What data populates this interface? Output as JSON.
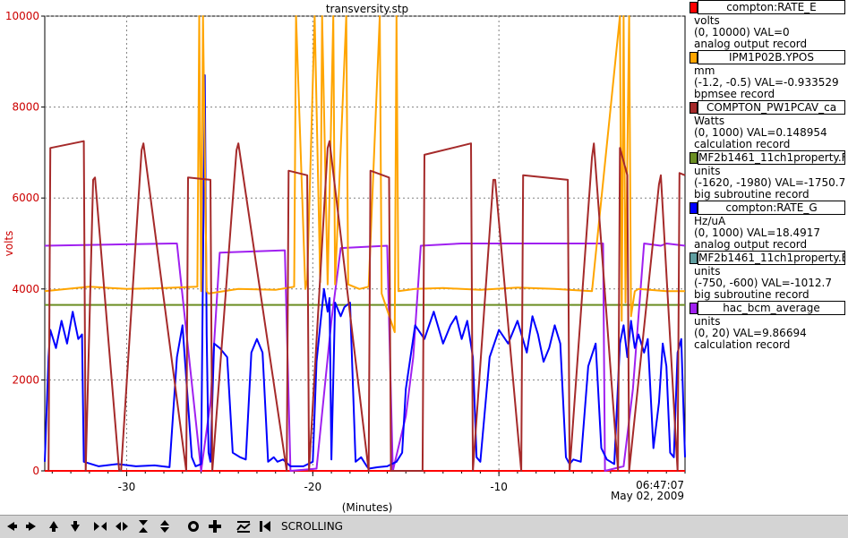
{
  "chart_data": {
    "type": "line",
    "title": "transversity.stp",
    "ylabel": "volts",
    "xlabel": "(Minutes)",
    "ylim": [
      0,
      10000
    ],
    "yticks": [
      0,
      2000,
      4000,
      6000,
      8000,
      10000
    ],
    "ytick_labels": [
      "0",
      "2000",
      "4000",
      "6000",
      "8000",
      "10000"
    ],
    "xlim": [
      -34.4,
      0
    ],
    "xticks": [
      -30,
      -20,
      -10
    ],
    "xtick_labels": [
      "-30",
      "-20",
      "-10"
    ],
    "time_label": "06:47:07",
    "date_label": "May 02, 2009",
    "series": [
      {
        "name": "compton:RATE_E",
        "color": "#ff0000",
        "x": [
          -34.4,
          0
        ],
        "y": [
          0,
          0
        ]
      },
      {
        "name": "IPM1P02B.YPOS",
        "color": "#ffa500",
        "x": [
          -34.4,
          -32,
          -30,
          -28,
          -26.2,
          -26.1,
          -26.0,
          -25.9,
          -25.7,
          -25.6,
          -24,
          -22,
          -21.0,
          -20.9,
          -20.4,
          -20.3,
          -19.9,
          -19.6,
          -19.5,
          -19.2,
          -18.9,
          -18.8,
          -18.2,
          -18.1,
          -17.5,
          -17,
          -16.4,
          -16.3,
          -15.6,
          -15.5,
          -15.4,
          -14.5,
          -13,
          -11,
          -9,
          -7,
          -5,
          -3.5,
          -3.4,
          -3.3,
          -3.2,
          -3.0,
          -2.9,
          -2.7,
          -2.5,
          -1,
          0
        ],
        "y": [
          3950,
          4050,
          4000,
          4020,
          4050,
          10000,
          3950,
          10000,
          3950,
          3900,
          4000,
          3980,
          4050,
          10000,
          4000,
          4200,
          10000,
          4150,
          10000,
          4100,
          10000,
          4100,
          10000,
          4100,
          4000,
          4050,
          10000,
          3900,
          3050,
          10000,
          3950,
          4000,
          4020,
          3980,
          4030,
          4000,
          3950,
          10000,
          3300,
          10000,
          3700,
          10000,
          3400,
          3950,
          4000,
          3950,
          3950
        ]
      },
      {
        "name": "COMPTON_PW1PCAV_ca",
        "color": "#a52a2a",
        "x": [
          -34.2,
          -34.1,
          -32.3,
          -32.2,
          -31.8,
          -31.7,
          -30.4,
          -30.3,
          -29.2,
          -29.1,
          -26.8,
          -26.7,
          -25.5,
          -25.4,
          -24.1,
          -24.0,
          -21.4,
          -21.3,
          -20.3,
          -20.2,
          -19.2,
          -19.1,
          -17.0,
          -16.9,
          -15.9,
          -15.8,
          -14.1,
          -14.0,
          -11.5,
          -11.4,
          -10.3,
          -10.2,
          -8.8,
          -8.7,
          -6.3,
          -6.2,
          -5.0,
          -4.9,
          -3.6,
          -3.5,
          -3.1,
          -3.0,
          -1.4,
          -1.3,
          -0.4,
          -0.3,
          0
        ],
        "y": [
          0,
          7100,
          7250,
          0,
          6400,
          6450,
          0,
          0,
          7050,
          7200,
          0,
          6450,
          6400,
          0,
          7050,
          7200,
          0,
          6600,
          6500,
          0,
          7100,
          7250,
          0,
          6600,
          6450,
          0,
          0,
          6950,
          7200,
          0,
          6400,
          6400,
          0,
          6500,
          6400,
          0,
          6900,
          7200,
          0,
          7100,
          6500,
          0,
          6300,
          6500,
          0,
          6550,
          6500
        ]
      },
      {
        "name": "MF2b1461_11ch1property.F",
        "color": "#6b8e23",
        "x": [
          -34.4,
          0
        ],
        "y": [
          3650,
          3650
        ]
      },
      {
        "name": "compton:RATE_G",
        "color": "#0000ff",
        "x": [
          -34.4,
          -34.2,
          -34.1,
          -33.8,
          -33.5,
          -33.2,
          -32.9,
          -32.6,
          -32.4,
          -32.3,
          -31.5,
          -30.5,
          -29.5,
          -28.5,
          -27.7,
          -27.3,
          -27.0,
          -26.5,
          -26.3,
          -26.0,
          -25.8,
          -25.7,
          -25.6,
          -25.5,
          -25.3,
          -25.0,
          -24.6,
          -24.3,
          -23.9,
          -23.6,
          -23.3,
          -23.0,
          -22.7,
          -22.4,
          -22.1,
          -21.9,
          -21.6,
          -21.2,
          -20.5,
          -20.0,
          -19.8,
          -19.6,
          -19.4,
          -19.2,
          -19.1,
          -19.0,
          -18.8,
          -18.5,
          -18.3,
          -18.0,
          -17.7,
          -17.4,
          -17.1,
          -17.0,
          -16.5,
          -16.0,
          -15.5,
          -15.2,
          -15.0,
          -14.5,
          -14.0,
          -13.5,
          -13.0,
          -12.6,
          -12.3,
          -12.0,
          -11.7,
          -11.4,
          -11.2,
          -11.0,
          -10.5,
          -10.0,
          -9.5,
          -9.0,
          -8.5,
          -8.2,
          -7.9,
          -7.6,
          -7.3,
          -7.0,
          -6.7,
          -6.4,
          -6.2,
          -6.0,
          -5.6,
          -5.2,
          -4.8,
          -4.5,
          -4.2,
          -3.8,
          -3.5,
          -3.3,
          -3.1,
          -2.9,
          -2.7,
          -2.5,
          -2.2,
          -2.0,
          -1.7,
          -1.4,
          -1.2,
          -1.0,
          -0.8,
          -0.6,
          -0.4,
          -0.2,
          0
        ],
        "y": [
          200,
          2500,
          3100,
          2700,
          3300,
          2800,
          3500,
          2900,
          3000,
          200,
          100,
          150,
          100,
          120,
          80,
          2500,
          3200,
          300,
          100,
          150,
          8700,
          3000,
          400,
          200,
          2800,
          2700,
          2500,
          400,
          300,
          250,
          2600,
          2900,
          2600,
          200,
          300,
          200,
          250,
          100,
          100,
          200,
          2400,
          3200,
          4000,
          3500,
          3800,
          250,
          3700,
          3400,
          3600,
          3700,
          200,
          300,
          100,
          50,
          80,
          100,
          200,
          400,
          1800,
          3200,
          2900,
          3500,
          2800,
          3200,
          3400,
          2900,
          3300,
          2500,
          300,
          200,
          2500,
          3100,
          2800,
          3300,
          2600,
          3400,
          3000,
          2400,
          2700,
          3200,
          2800,
          300,
          150,
          250,
          200,
          2300,
          2800,
          500,
          250,
          150,
          2800,
          3200,
          2500,
          3300,
          2700,
          3000,
          2600,
          2900,
          500,
          1500,
          2800,
          2300,
          400,
          300,
          2600,
          2900,
          300
        ]
      },
      {
        "name": "MF2b1461_11ch1property.E",
        "color": "#5f9ea0",
        "x": [
          -34.4,
          0
        ],
        "y": [
          0,
          0
        ]
      },
      {
        "name": "hac_bcm_average",
        "color": "#a020f0",
        "x": [
          -34.4,
          -27.5,
          -27.3,
          -26.0,
          -25.5,
          -25.0,
          -21.5,
          -21.2,
          -19.8,
          -19.0,
          -18.5,
          -16.0,
          -15.7,
          -15.0,
          -14.6,
          -14.2,
          -12,
          -10,
          -8,
          -6,
          -4.4,
          -4.3,
          -3.3,
          -2.8,
          -2.2,
          -1.3,
          -1.0,
          0
        ],
        "y": [
          4950,
          5000,
          5000,
          0,
          1500,
          4800,
          4850,
          0,
          50,
          3300,
          4900,
          4950,
          0,
          1200,
          2500,
          4950,
          5000,
          5000,
          5000,
          5000,
          5000,
          0,
          100,
          1800,
          5000,
          4950,
          5000,
          4950
        ]
      }
    ]
  },
  "legend": [
    {
      "name": "compton:RATE_E",
      "color": "#ff0000",
      "unit": "volts",
      "range": "(0, 10000)  VAL=0",
      "record": "analog output record"
    },
    {
      "name": "IPM1P02B.YPOS",
      "color": "#ffa500",
      "unit": "mm",
      "range": "(-1.2, -0.5) VAL=-0.933529",
      "record": "bpmsee record"
    },
    {
      "name": "COMPTON_PW1PCAV_ca",
      "color": "#a52a2a",
      "unit": "Watts",
      "range": "(0, 1000) VAL=0.148954",
      "record": "calculation record"
    },
    {
      "name": "MF2b1461_11ch1property.F",
      "color": "#6b8e23",
      "unit": "units",
      "range": "(-1620, -1980) VAL=-1750.7",
      "record": "big subroutine record"
    },
    {
      "name": "compton:RATE_G",
      "color": "#0000ff",
      "unit": "Hz/uA",
      "range": "(0, 1000) VAL=18.4917",
      "record": "analog output record"
    },
    {
      "name": "MF2b1461_11ch1property.E",
      "color": "#5f9ea0",
      "unit": "units",
      "range": "(-750, -600) VAL=-1012.7",
      "record": "big subroutine record"
    },
    {
      "name": "hac_bcm_average",
      "color": "#a020f0",
      "unit": "units",
      "range": "(0, 20) VAL=9.86694",
      "record": "calculation record"
    }
  ],
  "toolbar": {
    "mode_label": "SCROLLING",
    "buttons": [
      "arrow-left-icon",
      "arrow-right-icon",
      "arrow-up-icon",
      "arrow-down-icon",
      "expand-horizontal-icon",
      "compress-horizontal-icon",
      "expand-vertical-icon",
      "compress-vertical-icon",
      "zoom-circle-icon",
      "zoom-plus-icon",
      "autoscale-icon",
      "scroll-start-icon"
    ]
  }
}
